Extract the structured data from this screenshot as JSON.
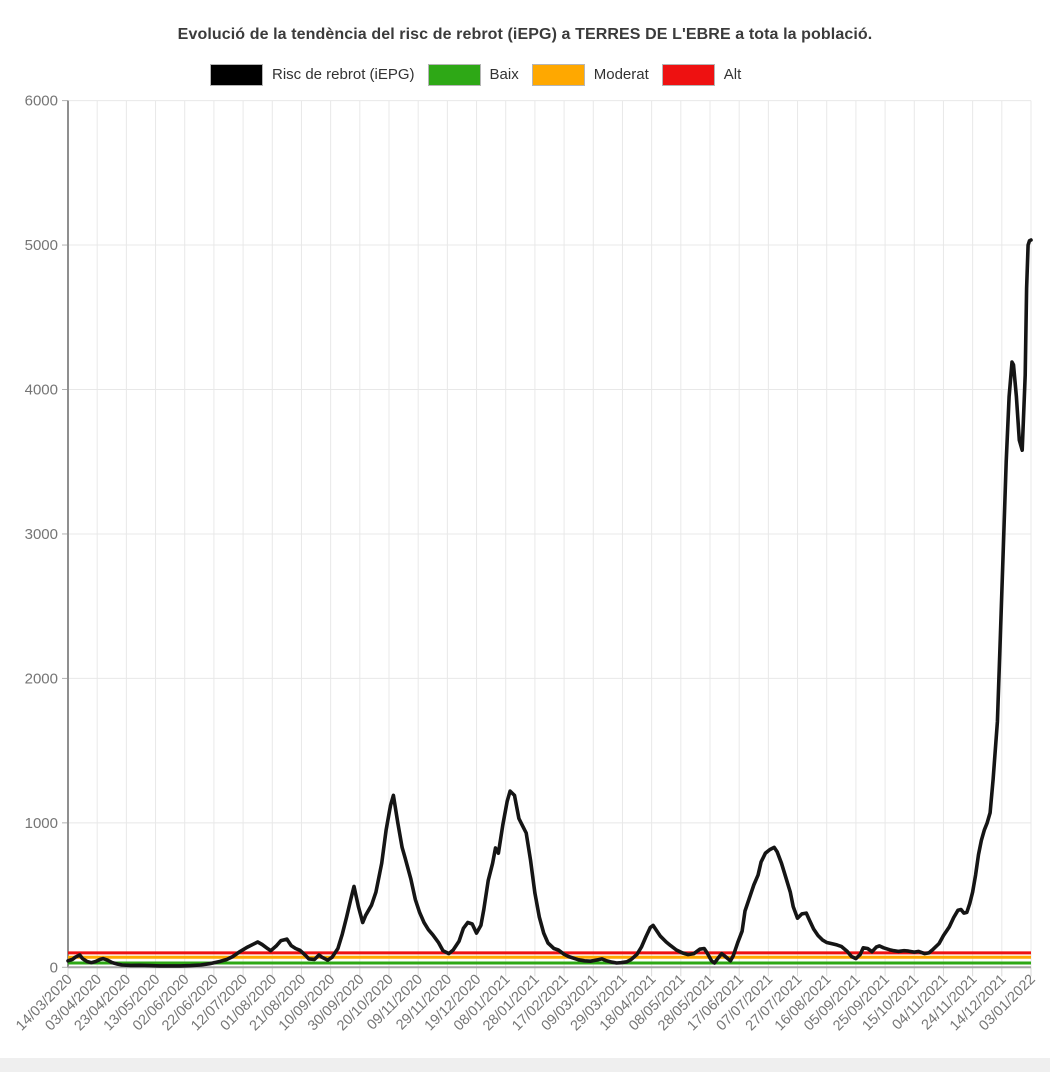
{
  "title": "Evolució de la tendència del risc de rebrot (iEPG) a TERRES DE L'EBRE a tota la població.",
  "legend": {
    "items": [
      {
        "label": "Risc de rebrot (iEPG)",
        "color": "#000000"
      },
      {
        "label": "Baix",
        "color": "#2ea816"
      },
      {
        "label": "Moderat",
        "color": "#ffa800"
      },
      {
        "label": "Alt",
        "color": "#ee1111"
      }
    ]
  },
  "colors": {
    "curve": "#151515",
    "grid": "#e8e8e8",
    "axis": "#8f8f8f",
    "baseline": "#a6a6a6",
    "tick_label": "#757575",
    "footer_strip": "#efefef"
  },
  "chart_data": {
    "type": "line",
    "title": "Evolució de la tendència del risc de rebrot (iEPG) a TERRES DE L'EBRE a tota la població.",
    "xlabel": "",
    "ylabel": "",
    "ylim": [
      0,
      6000
    ],
    "y_ticks": [
      0,
      1000,
      2000,
      3000,
      4000,
      5000,
      6000
    ],
    "grid": true,
    "legend_position": "top",
    "x_tick_interval_days": 20,
    "x_span_days": 660,
    "x_tick_labels": [
      "14/03/2020",
      "03/04/2020",
      "23/04/2020",
      "13/05/2020",
      "02/06/2020",
      "22/06/2020",
      "12/07/2020",
      "01/08/2020",
      "21/08/2020",
      "10/09/2020",
      "30/09/2020",
      "20/10/2020",
      "09/11/2020",
      "29/11/2020",
      "19/12/2020",
      "08/01/2021",
      "28/01/2021",
      "17/02/2021",
      "09/03/2021",
      "29/03/2021",
      "18/04/2021",
      "08/05/2021",
      "28/05/2021",
      "17/06/2021",
      "07/07/2021",
      "27/07/2021",
      "16/08/2021",
      "05/09/2021",
      "25/09/2021",
      "15/10/2021",
      "04/11/2021",
      "24/11/2021",
      "14/12/2021",
      "03/01/2022"
    ],
    "thresholds": [
      {
        "name": "Alt",
        "value": 100,
        "color": "#ee1111"
      },
      {
        "name": "Moderat",
        "value": 70,
        "color": "#ffa800"
      },
      {
        "name": "Baix",
        "value": 30,
        "color": "#2ea816"
      }
    ],
    "series": [
      {
        "name": "Risc de rebrot (iEPG)",
        "color": "#151515",
        "points": [
          [
            0,
            45
          ],
          [
            3,
            55
          ],
          [
            5,
            70
          ],
          [
            8,
            85
          ],
          [
            10,
            60
          ],
          [
            13,
            40
          ],
          [
            16,
            32
          ],
          [
            19,
            40
          ],
          [
            22,
            55
          ],
          [
            24,
            60
          ],
          [
            27,
            50
          ],
          [
            30,
            33
          ],
          [
            34,
            22
          ],
          [
            37,
            16
          ],
          [
            43,
            13
          ],
          [
            49,
            14
          ],
          [
            56,
            12
          ],
          [
            63,
            10
          ],
          [
            70,
            10
          ],
          [
            77,
            10
          ],
          [
            84,
            12
          ],
          [
            91,
            16
          ],
          [
            97,
            25
          ],
          [
            104,
            40
          ],
          [
            109,
            55
          ],
          [
            113,
            75
          ],
          [
            118,
            110
          ],
          [
            123,
            140
          ],
          [
            127,
            160
          ],
          [
            130,
            175
          ],
          [
            133,
            158
          ],
          [
            137,
            128
          ],
          [
            139,
            115
          ],
          [
            143,
            150
          ],
          [
            146,
            185
          ],
          [
            150,
            195
          ],
          [
            153,
            150
          ],
          [
            156,
            130
          ],
          [
            159,
            118
          ],
          [
            163,
            80
          ],
          [
            165,
            58
          ],
          [
            169,
            55
          ],
          [
            172,
            85
          ],
          [
            174,
            70
          ],
          [
            178,
            50
          ],
          [
            181,
            70
          ],
          [
            185,
            130
          ],
          [
            188,
            230
          ],
          [
            191,
            350
          ],
          [
            194,
            480
          ],
          [
            196,
            560
          ],
          [
            199,
            420
          ],
          [
            202,
            310
          ],
          [
            204,
            360
          ],
          [
            208,
            430
          ],
          [
            211,
            520
          ],
          [
            215,
            720
          ],
          [
            218,
            950
          ],
          [
            221,
            1120
          ],
          [
            223,
            1190
          ],
          [
            226,
            1000
          ],
          [
            229,
            830
          ],
          [
            231,
            760
          ],
          [
            235,
            610
          ],
          [
            238,
            470
          ],
          [
            241,
            380
          ],
          [
            244,
            310
          ],
          [
            247,
            260
          ],
          [
            250,
            225
          ],
          [
            254,
            170
          ],
          [
            257,
            115
          ],
          [
            261,
            95
          ],
          [
            264,
            120
          ],
          [
            268,
            180
          ],
          [
            271,
            270
          ],
          [
            274,
            310
          ],
          [
            277,
            300
          ],
          [
            280,
            237
          ],
          [
            283,
            290
          ],
          [
            285,
            400
          ],
          [
            288,
            600
          ],
          [
            291,
            720
          ],
          [
            293,
            826
          ],
          [
            295,
            790
          ],
          [
            298,
            985
          ],
          [
            301,
            1150
          ],
          [
            303,
            1220
          ],
          [
            306,
            1190
          ],
          [
            309,
            1030
          ],
          [
            311,
            990
          ],
          [
            314,
            930
          ],
          [
            317,
            743
          ],
          [
            320,
            514
          ],
          [
            323,
            348
          ],
          [
            326,
            237
          ],
          [
            329,
            168
          ],
          [
            333,
            130
          ],
          [
            336,
            120
          ],
          [
            340,
            90
          ],
          [
            343,
            75
          ],
          [
            346,
            65
          ],
          [
            350,
            52
          ],
          [
            354,
            45
          ],
          [
            358,
            42
          ],
          [
            362,
            50
          ],
          [
            366,
            58
          ],
          [
            369,
            45
          ],
          [
            373,
            35
          ],
          [
            376,
            30
          ],
          [
            379,
            32
          ],
          [
            383,
            38
          ],
          [
            386,
            55
          ],
          [
            390,
            90
          ],
          [
            393,
            140
          ],
          [
            396,
            210
          ],
          [
            399,
            275
          ],
          [
            401,
            290
          ],
          [
            403,
            260
          ],
          [
            406,
            215
          ],
          [
            410,
            175
          ],
          [
            413,
            150
          ],
          [
            417,
            120
          ],
          [
            421,
            100
          ],
          [
            425,
            88
          ],
          [
            429,
            95
          ],
          [
            433,
            125
          ],
          [
            436,
            130
          ],
          [
            438,
            100
          ],
          [
            441,
            45
          ],
          [
            443,
            30
          ],
          [
            446,
            70
          ],
          [
            448,
            95
          ],
          [
            451,
            70
          ],
          [
            454,
            45
          ],
          [
            456,
            80
          ],
          [
            459,
            170
          ],
          [
            462,
            250
          ],
          [
            464,
            390
          ],
          [
            467,
            480
          ],
          [
            470,
            570
          ],
          [
            473,
            640
          ],
          [
            475,
            730
          ],
          [
            478,
            790
          ],
          [
            481,
            815
          ],
          [
            484,
            830
          ],
          [
            486,
            800
          ],
          [
            489,
            720
          ],
          [
            492,
            620
          ],
          [
            495,
            520
          ],
          [
            497,
            420
          ],
          [
            500,
            340
          ],
          [
            503,
            370
          ],
          [
            506,
            375
          ],
          [
            508,
            330
          ],
          [
            511,
            265
          ],
          [
            514,
            220
          ],
          [
            517,
            190
          ],
          [
            520,
            172
          ],
          [
            523,
            165
          ],
          [
            527,
            155
          ],
          [
            530,
            145
          ],
          [
            534,
            110
          ],
          [
            537,
            75
          ],
          [
            540,
            60
          ],
          [
            543,
            90
          ],
          [
            545,
            135
          ],
          [
            548,
            130
          ],
          [
            551,
            108
          ],
          [
            554,
            140
          ],
          [
            556,
            148
          ],
          [
            559,
            135
          ],
          [
            563,
            122
          ],
          [
            566,
            115
          ],
          [
            569,
            110
          ],
          [
            573,
            115
          ],
          [
            576,
            112
          ],
          [
            580,
            105
          ],
          [
            583,
            110
          ],
          [
            587,
            95
          ],
          [
            590,
            100
          ],
          [
            593,
            125
          ],
          [
            597,
            165
          ],
          [
            600,
            220
          ],
          [
            604,
            280
          ],
          [
            607,
            345
          ],
          [
            610,
            395
          ],
          [
            612,
            400
          ],
          [
            614,
            375
          ],
          [
            616,
            380
          ],
          [
            618,
            440
          ],
          [
            620,
            520
          ],
          [
            622,
            640
          ],
          [
            624,
            780
          ],
          [
            626,
            880
          ],
          [
            628,
            950
          ],
          [
            630,
            1000
          ],
          [
            632,
            1070
          ],
          [
            634,
            1300
          ],
          [
            637,
            1700
          ],
          [
            639,
            2300
          ],
          [
            641,
            2900
          ],
          [
            643,
            3500
          ],
          [
            645,
            3950
          ],
          [
            647,
            4190
          ],
          [
            648,
            4170
          ],
          [
            650,
            3950
          ],
          [
            652,
            3650
          ],
          [
            654,
            3580
          ],
          [
            656,
            4100
          ],
          [
            657,
            4700
          ],
          [
            658,
            5000
          ],
          [
            659,
            5030
          ],
          [
            660,
            5035
          ]
        ]
      }
    ]
  }
}
